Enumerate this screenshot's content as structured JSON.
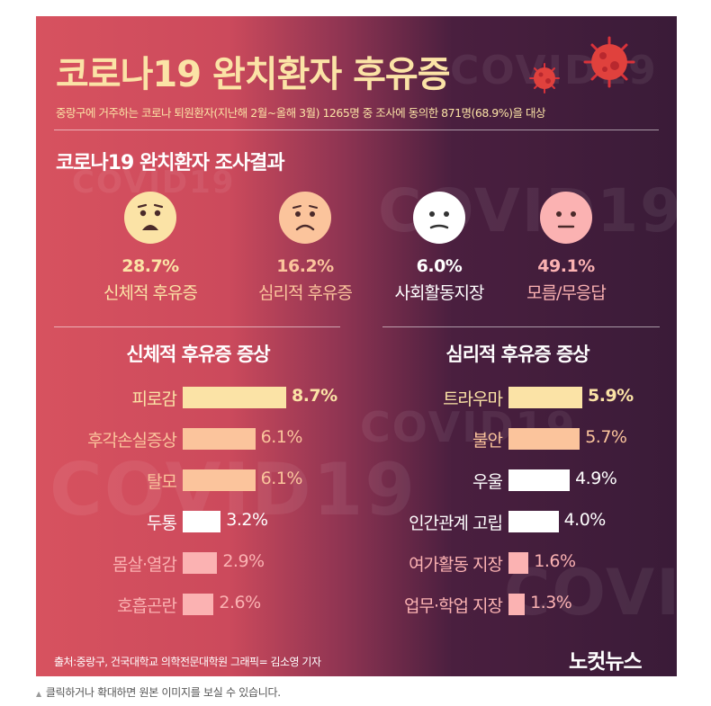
{
  "title": "코로나19 완치환자 후유증",
  "subtitle": "중랑구에 거주하는 코로나 퇴원환자(지난해 2월~올해 3월) 1265명 중 조사에 동의한 871명(68.9%)을 대상",
  "survey": {
    "title": "코로나19 완치환자 조사결과",
    "items": [
      {
        "pct": "28.7%",
        "label": "신체적 후유증",
        "color": "#fbe3a6",
        "face": "sad"
      },
      {
        "pct": "16.2%",
        "label": "심리적 후유증",
        "color": "#fbc49c",
        "face": "frown"
      },
      {
        "pct": "6.0%",
        "label": "사회활동지장",
        "color": "#ffffff",
        "face": "flat"
      },
      {
        "pct": "49.1%",
        "label": "모름/무응답",
        "color": "#fbb2b2",
        "face": "neutral"
      }
    ]
  },
  "watermark": "COVID19",
  "chart_data": [
    {
      "type": "bar",
      "title": "신체적 후유증 증상",
      "categories": [
        "피로감",
        "후각손실증상",
        "탈모",
        "두통",
        "몸살·열감",
        "호흡곤란"
      ],
      "values": [
        8.7,
        6.1,
        6.1,
        3.2,
        2.9,
        2.6
      ],
      "value_labels": [
        "8.7%",
        "6.1%",
        "6.1%",
        "3.2%",
        "2.9%",
        "2.6%"
      ],
      "colors": [
        "#fbe3a6",
        "#fbc49c",
        "#fbc49c",
        "#ffffff",
        "#fbb2b2",
        "#fbb2b2"
      ],
      "unit": "%"
    },
    {
      "type": "bar",
      "title": "심리적 후유증 증상",
      "categories": [
        "트라우마",
        "불안",
        "우울",
        "인간관계 고립",
        "여가활동 지장",
        "업무·학업 지장"
      ],
      "values": [
        5.9,
        5.7,
        4.9,
        4.0,
        1.6,
        1.3
      ],
      "value_labels": [
        "5.9%",
        "5.7%",
        "4.9%",
        "4.0%",
        "1.6%",
        "1.3%"
      ],
      "colors": [
        "#fbe3a6",
        "#fbc49c",
        "#ffffff",
        "#ffffff",
        "#fbb2b2",
        "#fbb2b2"
      ],
      "unit": "%"
    }
  ],
  "source": "출처:중랑구, 건국대학교 의학전문대학원   그래픽= 김소영 기자",
  "logo": "노컷뉴스",
  "caption": "클릭하거나 확대하면 원본 이미지를 보실 수 있습니다.",
  "icons": [
    "virus-icon",
    "sad-face-icon",
    "frown-face-icon",
    "flat-face-icon",
    "neutral-face-icon",
    "caption-triangle-icon"
  ]
}
